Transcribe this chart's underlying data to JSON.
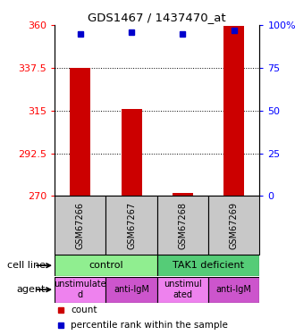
{
  "title": "GDS1467 / 1437470_at",
  "samples": [
    "GSM67266",
    "GSM67267",
    "GSM67268",
    "GSM67269"
  ],
  "red_values": [
    337.5,
    316.0,
    271.5,
    359.5
  ],
  "blue_values": [
    95,
    96,
    95,
    97
  ],
  "ylim_left": [
    270,
    360
  ],
  "ylim_right": [
    0,
    100
  ],
  "yticks_left": [
    270,
    292.5,
    315,
    337.5,
    360
  ],
  "yticks_right": [
    0,
    25,
    50,
    75,
    100
  ],
  "ytick_left_labels": [
    "270",
    "292.5",
    "315",
    "337.5",
    "360"
  ],
  "ytick_right_labels": [
    "0",
    "25",
    "50",
    "75",
    "100%"
  ],
  "cell_line": [
    [
      "control",
      2
    ],
    [
      "TAK1 deficient",
      2
    ]
  ],
  "agent": [
    "unstimulate\nd",
    "anti-IgM",
    "unstimul\nated",
    "anti-IgM"
  ],
  "agent_colors": [
    "#ee82ee",
    "#cc55cc",
    "#ee82ee",
    "#cc55cc"
  ],
  "cell_line_colors": [
    "#90ee90",
    "#55cc77"
  ],
  "sample_label_bg": "#c8c8c8",
  "bar_color": "#cc0000",
  "dot_color": "#0000cc",
  "bar_width": 0.4
}
